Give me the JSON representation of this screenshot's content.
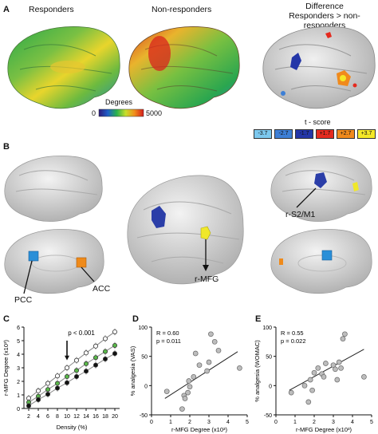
{
  "panels": {
    "a": "A",
    "b": "B",
    "c": "C",
    "d": "D",
    "e": "E"
  },
  "panelA": {
    "responders": "Responders",
    "nonresponders": "Non-responders",
    "difference_line1": "Difference",
    "difference_line2": "Responders > non-responders",
    "colorbar_title": "Degrees",
    "colorbar_min": "0",
    "colorbar_max": "5000",
    "tscore_title": "t - score",
    "tscores": [
      "-3.7",
      "-2.7",
      "-1.7",
      "+1.7",
      "+2.7",
      "+3.7"
    ],
    "tscore_colors": [
      "#7cc8ee",
      "#3d7fd6",
      "#2436a8",
      "#e52a1f",
      "#f08a1c",
      "#f4e827"
    ]
  },
  "panelB": {
    "pcc": "PCC",
    "acc": "ACC",
    "rs2m1": "r-S2/M1",
    "rmfg": "r-MFG"
  },
  "colors": {
    "blue_roi": "#2b3ea8",
    "pcc_roi": "#2a8fd8",
    "acc_roi": "#ef8a1a",
    "yellow_roi": "#f0e82a",
    "brain_gray": "#d7d7d7",
    "green": "#5ab94a"
  },
  "chart_data": [
    {
      "type": "line",
      "panel": "C",
      "xlabel": "Density (%)",
      "ylabel": "r-MFG Degree (x10³)",
      "annotation": "p < 0.001",
      "x": [
        2,
        4,
        6,
        8,
        10,
        12,
        14,
        16,
        18,
        20
      ],
      "xticks": [
        "2",
        "4",
        "6",
        "8",
        "10",
        "12",
        "14",
        "16",
        "18",
        "20"
      ],
      "ylim": [
        0,
        6
      ],
      "yticks": [
        "0",
        "1",
        "2",
        "3",
        "4",
        "5",
        "6"
      ],
      "series": [
        {
          "values": [
            0.75,
            1.3,
            1.85,
            2.4,
            3.0,
            3.55,
            4.1,
            4.6,
            5.15,
            5.65
          ],
          "color": "#ffffff"
        },
        {
          "values": [
            0.45,
            0.9,
            1.4,
            1.85,
            2.35,
            2.8,
            3.3,
            3.75,
            4.2,
            4.65
          ],
          "color": "#5ab94a"
        },
        {
          "values": [
            0.2,
            0.65,
            1.05,
            1.5,
            1.9,
            2.35,
            2.75,
            3.2,
            3.65,
            4.05
          ],
          "color": "#111111"
        }
      ]
    },
    {
      "type": "scatter",
      "panel": "D",
      "xlabel": "r-MFG Degree (x10³)",
      "ylabel": "% analgesia (VAS)",
      "stat1": "R = 0.60",
      "stat2": "p = 0.011",
      "xlim": [
        0,
        5
      ],
      "ylim": [
        -50,
        100
      ],
      "xticks": [
        "0",
        "1",
        "2",
        "3",
        "4",
        "5"
      ],
      "yticks": [
        "-50",
        "0",
        "50",
        "100"
      ],
      "points": [
        [
          0.8,
          -10
        ],
        [
          1.6,
          -40
        ],
        [
          1.7,
          -17
        ],
        [
          1.75,
          -22
        ],
        [
          1.9,
          -12
        ],
        [
          2.0,
          -2
        ],
        [
          1.95,
          8
        ],
        [
          2.2,
          15
        ],
        [
          2.5,
          35
        ],
        [
          2.3,
          55
        ],
        [
          2.9,
          25
        ],
        [
          3.0,
          40
        ],
        [
          3.5,
          60
        ],
        [
          3.3,
          75
        ],
        [
          3.1,
          88
        ],
        [
          4.6,
          30
        ]
      ],
      "fit": [
        [
          0.7,
          -22
        ],
        [
          4.5,
          58
        ]
      ]
    },
    {
      "type": "scatter",
      "panel": "E",
      "xlabel": "r-MFG Degree (x10³)",
      "ylabel": "% analgesia (WOMAC)",
      "stat1": "R = 0.55",
      "stat2": "p = 0.022",
      "xlim": [
        0,
        5
      ],
      "ylim": [
        -50,
        100
      ],
      "xticks": [
        "0",
        "1",
        "2",
        "3",
        "4",
        "5"
      ],
      "yticks": [
        "-50",
        "0",
        "50",
        "100"
      ],
      "points": [
        [
          0.8,
          -12
        ],
        [
          1.5,
          0
        ],
        [
          1.7,
          -28
        ],
        [
          1.9,
          -8
        ],
        [
          1.8,
          10
        ],
        [
          2.0,
          22
        ],
        [
          2.2,
          30
        ],
        [
          2.4,
          20
        ],
        [
          2.5,
          15
        ],
        [
          2.6,
          38
        ],
        [
          3.0,
          35
        ],
        [
          3.1,
          28
        ],
        [
          3.3,
          40
        ],
        [
          3.4,
          30
        ],
        [
          3.5,
          80
        ],
        [
          3.6,
          88
        ],
        [
          4.6,
          15
        ],
        [
          3.2,
          10
        ]
      ],
      "fit": [
        [
          0.7,
          -8
        ],
        [
          4.6,
          62
        ]
      ]
    }
  ]
}
